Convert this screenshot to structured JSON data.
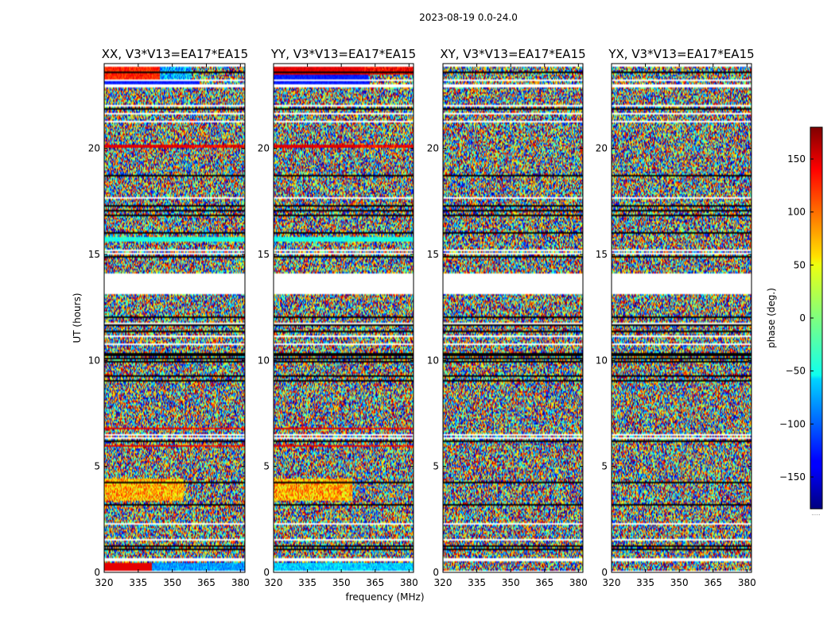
{
  "chart_data": {
    "type": "heatmap",
    "suptitle": "2023-08-19 0.0-24.0",
    "xlabel": "frequency (MHz)",
    "ylabel": "UT (hours)",
    "xlim": [
      320,
      382
    ],
    "ylim": [
      0,
      24
    ],
    "xticks": [
      "320",
      "335",
      "350",
      "365",
      "380"
    ],
    "xtick_values": [
      320,
      335,
      350,
      365,
      380
    ],
    "yticks": [
      "0",
      "5",
      "10",
      "15",
      "20"
    ],
    "ytick_values": [
      0,
      5,
      10,
      15,
      20
    ],
    "gaps_ut_hours": [
      [
        13.1,
        14.1
      ],
      [
        1.5,
        1.6
      ],
      [
        0.55,
        0.65
      ],
      [
        17.6,
        17.7
      ],
      [
        21.95,
        22.05
      ],
      [
        22.9,
        23.05
      ]
    ],
    "panels": [
      {
        "title": "XX, V3*V13=EA17*EA15",
        "structure": "parallel"
      },
      {
        "title": "YY, V3*V13=EA17*EA15",
        "structure": "parallel"
      },
      {
        "title": "XY, V3*V13=EA17*EA15",
        "structure": "cross"
      },
      {
        "title": "YX, V3*V13=EA17*EA15",
        "structure": "cross"
      }
    ],
    "colorbar": {
      "label": "phase (deg.)",
      "range": [
        -180,
        180
      ],
      "ticks": [
        "150",
        "100",
        "50",
        "0",
        "−50",
        "−100",
        "−150"
      ],
      "tick_values": [
        150,
        100,
        50,
        0,
        -50,
        -100,
        -150
      ],
      "colormap": "jet",
      "extra_label": "....."
    }
  }
}
